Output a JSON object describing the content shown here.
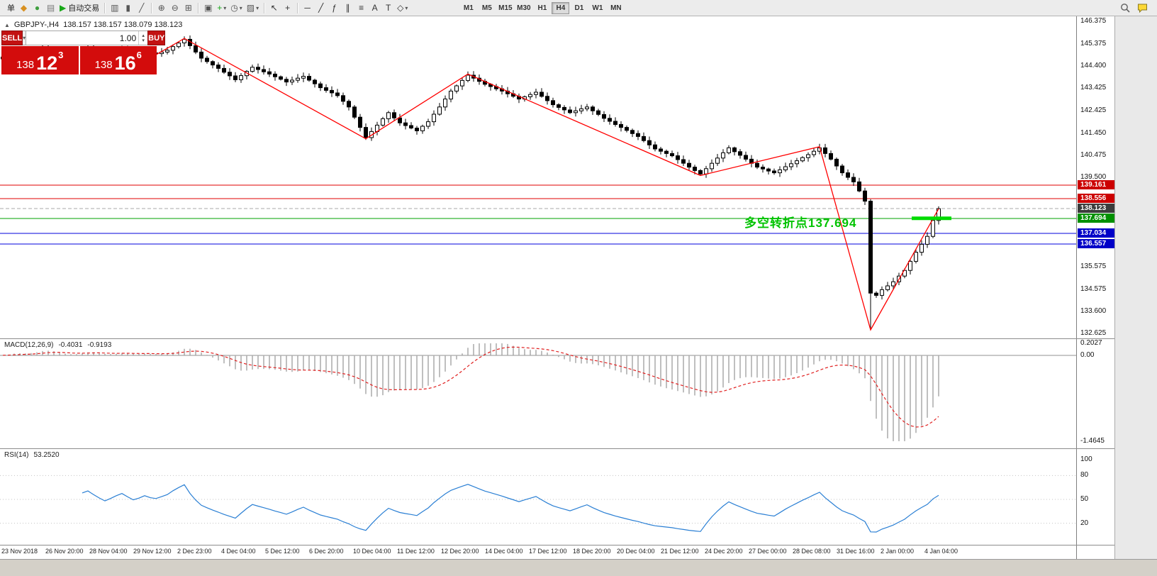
{
  "toolbar": {
    "items": [
      {
        "name": "new-order-button",
        "label": "单"
      },
      {
        "name": "metatrader-app-icon",
        "glyph": "◆",
        "color": "#d89020"
      },
      {
        "name": "market-watch-icon",
        "glyph": "●",
        "color": "#3f9f3f"
      },
      {
        "name": "navigator-icon",
        "glyph": "▤",
        "color": "#777777"
      },
      {
        "name": "autotrading-button",
        "glyph": "▶",
        "color": "#18a818",
        "label": "自动交易"
      },
      {
        "sep": true
      },
      {
        "name": "bar-chart-icon",
        "glyph": "▥",
        "color": "#555555"
      },
      {
        "name": "candlestick-chart-icon",
        "glyph": "▮",
        "color": "#555555"
      },
      {
        "name": "line-chart-icon",
        "glyph": "╱",
        "color": "#555555"
      },
      {
        "sep": true
      },
      {
        "name": "zoom-in-icon",
        "glyph": "⊕",
        "color": "#555555"
      },
      {
        "name": "zoom-out-icon",
        "glyph": "⊖",
        "color": "#555555"
      },
      {
        "name": "tile-windows-icon",
        "glyph": "⊞",
        "color": "#555555"
      },
      {
        "sep": true
      },
      {
        "name": "auto-arrange-icon",
        "glyph": "▣",
        "color": "#555555"
      },
      {
        "name": "indicators-icon",
        "glyph": "+",
        "color": "#18a818",
        "dropdown": true
      },
      {
        "name": "periods-icon",
        "glyph": "◷",
        "color": "#555555",
        "dropdown": true
      },
      {
        "name": "templates-icon",
        "glyph": "▨",
        "color": "#555555",
        "dropdown": true
      },
      {
        "sep": true
      },
      {
        "name": "cursor-icon",
        "glyph": "↖",
        "color": "#333333"
      },
      {
        "name": "crosshair-icon",
        "glyph": "+",
        "color": "#333333"
      },
      {
        "sep": true
      },
      {
        "name": "hline-icon",
        "glyph": "─",
        "color": "#333333"
      },
      {
        "name": "trendline-icon",
        "glyph": "╱",
        "color": "#333333"
      },
      {
        "name": "fibonacci-icon",
        "glyph": "ƒ",
        "color": "#333333"
      },
      {
        "name": "channel-icon",
        "glyph": "∥",
        "color": "#333333"
      },
      {
        "name": "shapes-icon",
        "glyph": "≡",
        "color": "#333333"
      },
      {
        "name": "text-icon",
        "glyph": "A",
        "color": "#333333"
      },
      {
        "name": "label-icon",
        "glyph": "T",
        "color": "#333333"
      },
      {
        "name": "arrow-objects-icon",
        "glyph": "◇",
        "color": "#333333",
        "dropdown": true
      }
    ],
    "timeframes": {
      "list": [
        "M1",
        "M5",
        "M15",
        "M30",
        "H1",
        "H4",
        "D1",
        "W1",
        "MN"
      ],
      "active": "H4"
    }
  },
  "chart": {
    "collapse_arrow": "▲",
    "symbol_label": "GBPJPY-,H4",
    "ohlc_text": "138.157 138.157 138.079 138.123",
    "trade_panel": {
      "sell_label": "SELL",
      "buy_label": "BUY",
      "volume": "1.00",
      "sell_big": "138",
      "sell_pips": "12",
      "sell_sup": "3",
      "buy_big": "138",
      "buy_pips": "16",
      "buy_sup": "6"
    },
    "annotation": {
      "text": "多空转折点137.694",
      "color": "#00c300"
    },
    "green_segment": {
      "price": 137.694,
      "color": "#00dc00"
    },
    "levels": [
      {
        "label": "139.161",
        "value": 139.161,
        "line": "#e00000",
        "tag": "#cc0000"
      },
      {
        "label": "138.556",
        "value": 138.556,
        "line": "#e00000",
        "tag": "#cc0000"
      },
      {
        "label": "138.123",
        "value": 138.123,
        "line": "#aaaaaa",
        "tag": "#3c3c3c",
        "current": true
      },
      {
        "label": "137.694",
        "value": 137.694,
        "line": "#00a000",
        "tag": "#009000"
      },
      {
        "label": "137.034",
        "value": 137.034,
        "line": "#0000dc",
        "tag": "#0000c8"
      },
      {
        "label": "136.557",
        "value": 136.557,
        "line": "#0000dc",
        "tag": "#0000c8"
      }
    ],
    "price_axis": [
      "146.375",
      "145.375",
      "144.400",
      "143.425",
      "142.425",
      "141.450",
      "140.475",
      "139.500",
      "135.575",
      "134.575",
      "133.600",
      "132.625"
    ]
  },
  "chart_data": {
    "type": "candlestick",
    "symbol": "GBPJPY-",
    "timeframe": "H4",
    "title": "GBPJPY-,H4",
    "ohlc_display": {
      "open": "138.157",
      "high": "138.157",
      "low": "138.079",
      "close": "138.123"
    },
    "ylim": [
      132.625,
      146.375
    ],
    "first_open": 144.72,
    "closes": [
      144.8,
      144.92,
      145.05,
      144.95,
      144.85,
      144.98,
      145.1,
      145.22,
      145.1,
      144.95,
      144.82,
      144.7,
      144.82,
      144.95,
      145.08,
      145.18,
      145.05,
      144.92,
      144.8,
      144.9,
      145.02,
      145.12,
      145.0,
      144.88,
      144.95,
      145.05,
      144.98,
      144.95,
      145.02,
      145.1,
      145.26,
      145.42,
      145.58,
      145.3,
      145.02,
      144.75,
      144.6,
      144.45,
      144.3,
      144.13,
      143.97,
      143.8,
      143.98,
      144.17,
      144.35,
      144.25,
      144.15,
      144.05,
      143.93,
      143.82,
      143.7,
      143.78,
      143.87,
      143.95,
      143.78,
      143.62,
      143.45,
      143.33,
      143.22,
      143.1,
      142.85,
      142.6,
      142.15,
      141.7,
      141.25,
      141.52,
      141.8,
      142.08,
      142.35,
      142.12,
      141.9,
      141.78,
      141.67,
      141.55,
      141.75,
      141.95,
      142.28,
      142.6,
      142.95,
      143.3,
      143.53,
      143.77,
      144.0,
      143.87,
      143.73,
      143.6,
      143.5,
      143.4,
      143.3,
      143.18,
      143.07,
      142.95,
      143.05,
      143.15,
      143.25,
      143.07,
      142.88,
      142.7,
      142.58,
      142.47,
      142.35,
      142.43,
      142.52,
      142.6,
      142.43,
      142.27,
      142.1,
      141.97,
      141.83,
      141.7,
      141.57,
      141.43,
      141.3,
      141.12,
      140.93,
      140.75,
      140.65,
      140.55,
      140.45,
      140.28,
      140.12,
      139.95,
      139.8,
      139.65,
      139.88,
      140.12,
      140.35,
      140.58,
      140.8,
      140.63,
      140.47,
      140.3,
      140.12,
      139.95,
      139.87,
      139.78,
      139.7,
      139.83,
      139.97,
      140.1,
      140.23,
      140.37,
      140.5,
      140.65,
      140.8,
      140.55,
      140.3,
      140.0,
      139.7,
      139.5,
      139.3,
      138.9,
      138.45,
      134.4,
      134.3,
      134.55,
      134.72,
      134.9,
      135.15,
      135.4,
      135.8,
      136.2,
      136.55,
      136.9,
      137.6,
      138.12
    ],
    "lows_override": {
      "153": 132.8
    },
    "zigzag": {
      "color": "#ff0000",
      "points": [
        [
          27,
          144.9
        ],
        [
          32,
          145.62
        ],
        [
          64,
          141.2
        ],
        [
          82,
          144.05
        ],
        [
          123,
          139.58
        ],
        [
          144,
          140.85
        ],
        [
          153,
          132.78
        ],
        [
          165,
          138.12
        ]
      ]
    },
    "dates": [
      "23 Nov 2018",
      "26 Nov 20:00",
      "28 Nov 04:00",
      "29 Nov 12:00",
      "2 Dec 23:00",
      "4 Dec 04:00",
      "5 Dec 12:00",
      "6 Dec 20:00",
      "10 Dec 04:00",
      "11 Dec 12:00",
      "12 Dec 20:00",
      "14 Dec 04:00",
      "17 Dec 12:00",
      "18 Dec 20:00",
      "20 Dec 04:00",
      "21 Dec 12:00",
      "24 Dec 20:00",
      "27 Dec 00:00",
      "28 Dec 08:00",
      "31 Dec 16:00",
      "2 Jan 00:00",
      "4 Jan 04:00"
    ]
  },
  "macd": {
    "name": "MACD(12,26,9)",
    "value_main": "-0.4031",
    "value_signal": "-0.9193",
    "axis": [
      "0.2027",
      "0.00",
      "-1.4645"
    ],
    "fast": 12,
    "slow": 26,
    "signal": 9,
    "bar_color": "#aaaaaa",
    "signal_color": "#e02020"
  },
  "rsi": {
    "name": "RSI(14)",
    "value": "53.2520",
    "axis": [
      100,
      80,
      50,
      20
    ],
    "levels": [
      80,
      50,
      20
    ],
    "period": 14,
    "color": "#2a7fd4"
  }
}
